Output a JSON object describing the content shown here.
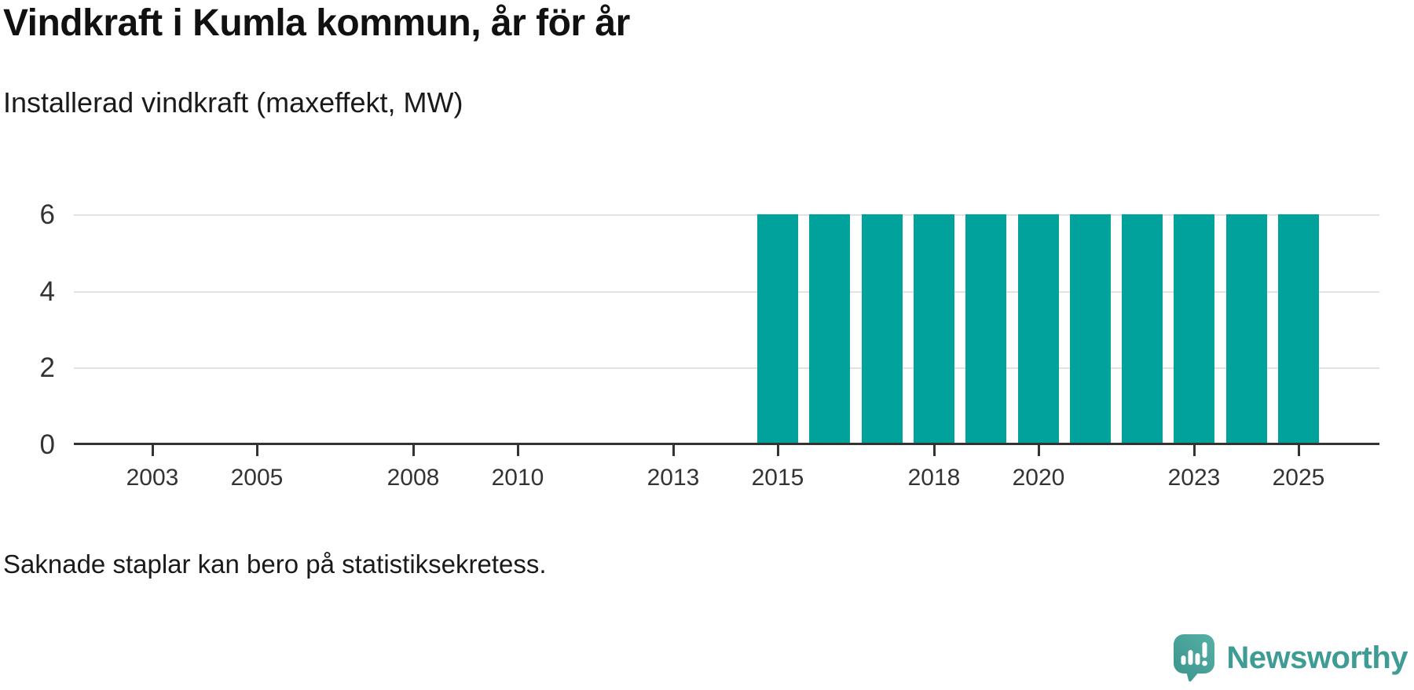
{
  "header": {
    "title": "Vindkraft i Kumla kommun, år för år",
    "subtitle": "Installerad vindkraft (maxeffekt, MW)"
  },
  "chart_data": {
    "type": "bar",
    "title": "Vindkraft i Kumla kommun, år för år",
    "subtitle": "Installerad vindkraft (maxeffekt, MW)",
    "ylabel": "Installerad vindkraft (maxeffekt, MW)",
    "unit": "MW",
    "grid": true,
    "legend": "none",
    "xlim": [
      2001.5,
      2026.5
    ],
    "ylim": [
      0,
      6.6
    ],
    "x_ticks": [
      2003,
      2005,
      2008,
      2010,
      2013,
      2015,
      2018,
      2020,
      2023,
      2025
    ],
    "y_ticks": [
      0,
      2,
      4,
      6
    ],
    "bar_color": "#00a29b",
    "axis_color": "#333333",
    "gridline_color": "#e2e2e2",
    "bars": [
      {
        "year": 2015,
        "value": 6
      },
      {
        "year": 2016,
        "value": 6
      },
      {
        "year": 2017,
        "value": 6
      },
      {
        "year": 2018,
        "value": 6
      },
      {
        "year": 2019,
        "value": 6
      },
      {
        "year": 2020,
        "value": 6
      },
      {
        "year": 2021,
        "value": 6
      },
      {
        "year": 2022,
        "value": 6
      },
      {
        "year": 2023,
        "value": 6
      },
      {
        "year": 2024,
        "value": 6
      },
      {
        "year": 2025,
        "value": 6
      }
    ]
  },
  "footnote": {
    "text": "Saknade staplar kan bero på statistiksekretess."
  },
  "brand": {
    "name": "Newsworthy",
    "color": "#3e9c94",
    "icon": "newsworthy-speech-bubble-bar-chart-icon"
  }
}
